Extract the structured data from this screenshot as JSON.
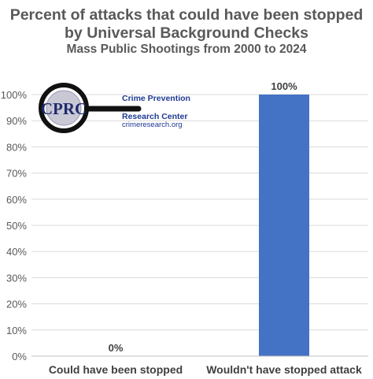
{
  "chart_data": {
    "type": "bar",
    "title": "Percent of attacks that could have been stopped",
    "title_line2": "by Universal Background Checks",
    "subtitle": "Mass Public Shootings from 2000 to 2024",
    "categories": [
      "Could have been stopped",
      "Wouldn't have stopped attack"
    ],
    "values": [
      0,
      100
    ],
    "value_labels": [
      "0%",
      "100%"
    ],
    "ylim": [
      0,
      100
    ],
    "yticks": [
      "0%",
      "10%",
      "20%",
      "30%",
      "40%",
      "50%",
      "60%",
      "70%",
      "80%",
      "90%",
      "100%"
    ],
    "grid": true,
    "bar_color": "#4472c4"
  },
  "logo": {
    "monogram": "CPRC",
    "line1": "Crime Prevention",
    "line2": "Research Center",
    "url": "crimeresearch.org"
  }
}
